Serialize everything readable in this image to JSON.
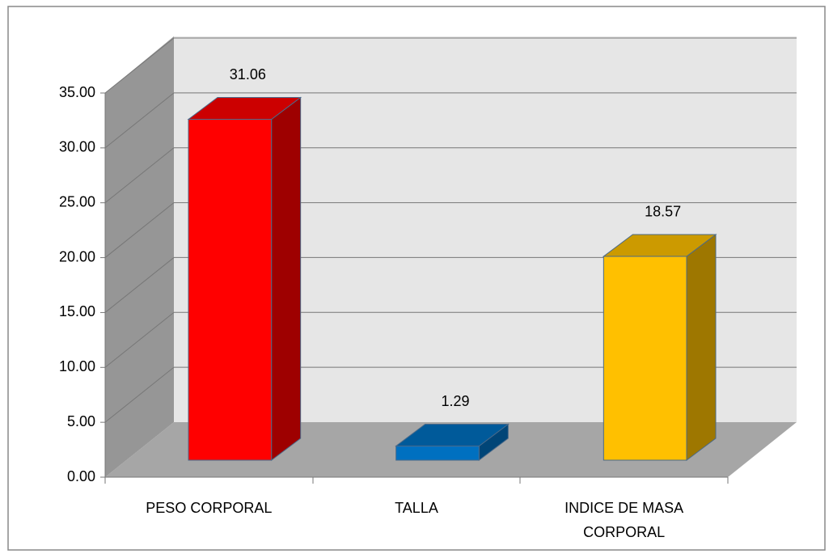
{
  "chart_data": {
    "type": "bar3d",
    "categories": [
      "PESO CORPORAL",
      "TALLA",
      "INDICE DE MASA CORPORAL"
    ],
    "values": [
      31.06,
      1.29,
      18.57
    ],
    "colors": [
      "#ff0000",
      "#0070c0",
      "#ffc000"
    ],
    "ylim": [
      0,
      35
    ],
    "yticks": [
      {
        "value": 0,
        "label": "0.00"
      },
      {
        "value": 5,
        "label": "5.00"
      },
      {
        "value": 10,
        "label": "10.00"
      },
      {
        "value": 15,
        "label": "15.00"
      },
      {
        "value": 20,
        "label": "20.00"
      },
      {
        "value": 25,
        "label": "25.00"
      },
      {
        "value": 30,
        "label": "30.00"
      },
      {
        "value": 35,
        "label": "35.00"
      }
    ],
    "grid": true
  }
}
